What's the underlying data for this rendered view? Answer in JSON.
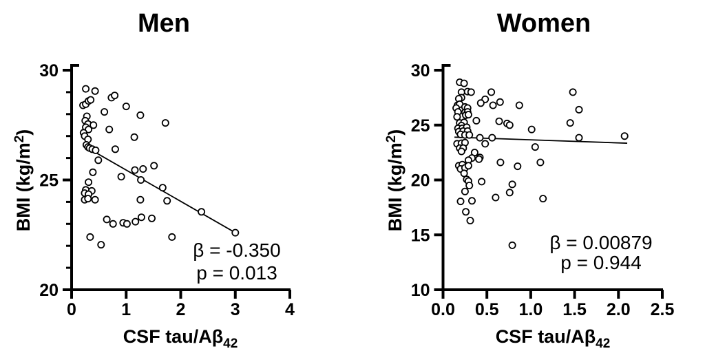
{
  "figure": {
    "background": "#ffffff",
    "ink_color": "#000000",
    "marker_style": "open-circle"
  },
  "chart_data": [
    {
      "id": "men",
      "type": "scatter",
      "title": "Men",
      "xlabel": {
        "main": "CSF tau/Aβ",
        "subscript": "42"
      },
      "ylabel": {
        "main": "BMI (kg/m",
        "superscript": "2",
        "suffix": ")"
      },
      "xlim": [
        0,
        4
      ],
      "ylim": [
        20,
        30
      ],
      "xticks": {
        "values": [
          0,
          1,
          2,
          3,
          4
        ],
        "labels": [
          "0",
          "1",
          "2",
          "3",
          "4"
        ]
      },
      "yticks": {
        "values": [
          30,
          25,
          20
        ],
        "labels": [
          "30",
          "25",
          "20"
        ]
      },
      "y_minor_tick_step": 1,
      "grid": false,
      "legend": null,
      "trend_line": {
        "x_start": 0.23,
        "y_start": 26.55,
        "x_end": 3.0,
        "y_end": 22.6
      },
      "annotation": {
        "lines": [
          "β = -0.350",
          "p = 0.013"
        ]
      },
      "points": [
        [
          0.26,
          29.15
        ],
        [
          0.43,
          29.05
        ],
        [
          0.21,
          28.4
        ],
        [
          0.26,
          28.45
        ],
        [
          0.31,
          28.6
        ],
        [
          0.35,
          28.65
        ],
        [
          0.73,
          28.75
        ],
        [
          0.79,
          28.85
        ],
        [
          1.0,
          28.35
        ],
        [
          0.6,
          28.1
        ],
        [
          1.26,
          27.95
        ],
        [
          1.72,
          27.6
        ],
        [
          0.28,
          27.9
        ],
        [
          0.25,
          27.7
        ],
        [
          0.3,
          27.55
        ],
        [
          0.26,
          27.4
        ],
        [
          0.31,
          27.3
        ],
        [
          0.22,
          27.15
        ],
        [
          0.24,
          27.0
        ],
        [
          0.4,
          27.5
        ],
        [
          0.69,
          27.3
        ],
        [
          1.15,
          26.95
        ],
        [
          0.3,
          26.85
        ],
        [
          0.27,
          26.6
        ],
        [
          0.3,
          26.5
        ],
        [
          0.33,
          26.45
        ],
        [
          0.38,
          26.4
        ],
        [
          0.44,
          26.35
        ],
        [
          0.8,
          26.4
        ],
        [
          0.49,
          25.9
        ],
        [
          0.39,
          25.35
        ],
        [
          0.91,
          25.15
        ],
        [
          1.16,
          25.45
        ],
        [
          1.31,
          25.5
        ],
        [
          1.51,
          25.65
        ],
        [
          1.27,
          25.0
        ],
        [
          0.31,
          24.9
        ],
        [
          1.67,
          24.65
        ],
        [
          0.26,
          24.55
        ],
        [
          0.37,
          24.5
        ],
        [
          0.24,
          24.4
        ],
        [
          0.31,
          24.35
        ],
        [
          0.24,
          24.1
        ],
        [
          0.3,
          24.15
        ],
        [
          0.43,
          24.1
        ],
        [
          1.26,
          24.1
        ],
        [
          1.75,
          24.05
        ],
        [
          2.38,
          23.55
        ],
        [
          0.645,
          23.2
        ],
        [
          0.76,
          23.0
        ],
        [
          0.945,
          23.05
        ],
        [
          1.015,
          23.0
        ],
        [
          1.17,
          23.1
        ],
        [
          1.28,
          23.3
        ],
        [
          1.47,
          23.25
        ],
        [
          0.34,
          22.4
        ],
        [
          1.84,
          22.4
        ],
        [
          0.54,
          22.05
        ],
        [
          3.0,
          22.6
        ]
      ]
    },
    {
      "id": "women",
      "type": "scatter",
      "title": "Women",
      "xlabel": {
        "main": "CSF tau/Aβ",
        "subscript": "42"
      },
      "ylabel": {
        "main": "BMI (kg/m",
        "superscript": "2",
        "suffix": ")"
      },
      "xlim": [
        0,
        2.5
      ],
      "ylim": [
        10,
        30
      ],
      "xticks": {
        "values": [
          0,
          0.5,
          1.0,
          1.5,
          2.0,
          2.5
        ],
        "labels": [
          "0.0",
          "0.5",
          "1.0",
          "1.5",
          "2.0",
          "2.5"
        ]
      },
      "yticks": {
        "values": [
          30,
          25,
          20,
          15,
          10
        ],
        "labels": [
          "30",
          "25",
          "20",
          "15",
          "10"
        ]
      },
      "y_minor_tick_step": null,
      "grid": false,
      "legend": null,
      "trend_line": {
        "x_start": 0.13,
        "y_start": 23.9,
        "x_end": 2.1,
        "y_end": 23.35
      },
      "annotation": {
        "lines": [
          "β = 0.00879",
          "p = 0.944"
        ]
      },
      "points": [
        [
          0.19,
          28.9
        ],
        [
          0.24,
          28.8
        ],
        [
          0.21,
          28.0
        ],
        [
          0.28,
          28.05
        ],
        [
          0.32,
          28.0
        ],
        [
          0.55,
          28.0
        ],
        [
          1.48,
          28.0
        ],
        [
          0.21,
          27.5
        ],
        [
          0.18,
          27.4
        ],
        [
          0.48,
          27.35
        ],
        [
          0.43,
          27.0
        ],
        [
          0.65,
          27.1
        ],
        [
          0.57,
          26.8
        ],
        [
          0.87,
          26.8
        ],
        [
          0.165,
          26.8
        ],
        [
          0.19,
          26.9
        ],
        [
          0.15,
          26.55
        ],
        [
          0.25,
          26.65
        ],
        [
          0.28,
          26.55
        ],
        [
          0.17,
          26.2
        ],
        [
          0.25,
          26.15
        ],
        [
          0.28,
          26.2
        ],
        [
          1.55,
          26.4
        ],
        [
          0.16,
          25.75
        ],
        [
          0.26,
          25.9
        ],
        [
          0.29,
          25.95
        ],
        [
          0.38,
          25.4
        ],
        [
          0.64,
          25.35
        ],
        [
          0.73,
          25.15
        ],
        [
          0.76,
          25.0
        ],
        [
          1.45,
          25.2
        ],
        [
          1.01,
          24.6
        ],
        [
          0.19,
          25.2
        ],
        [
          0.24,
          25.25
        ],
        [
          0.21,
          24.95
        ],
        [
          0.17,
          24.7
        ],
        [
          0.22,
          24.7
        ],
        [
          0.27,
          24.8
        ],
        [
          0.18,
          24.4
        ],
        [
          0.23,
          24.45
        ],
        [
          0.28,
          24.45
        ],
        [
          0.2,
          24.15
        ],
        [
          0.25,
          24.1
        ],
        [
          0.3,
          24.1
        ],
        [
          0.42,
          23.85
        ],
        [
          0.56,
          23.85
        ],
        [
          2.07,
          24.0
        ],
        [
          1.55,
          23.85
        ],
        [
          0.48,
          23.3
        ],
        [
          0.16,
          23.3
        ],
        [
          0.21,
          23.35
        ],
        [
          0.25,
          23.4
        ],
        [
          0.19,
          22.9
        ],
        [
          0.23,
          22.9
        ],
        [
          0.21,
          22.6
        ],
        [
          0.36,
          22.5
        ],
        [
          0.33,
          22.0
        ],
        [
          0.42,
          22.05
        ],
        [
          1.05,
          23.0
        ],
        [
          0.29,
          21.8
        ],
        [
          0.41,
          21.9
        ],
        [
          0.655,
          21.6
        ],
        [
          0.85,
          21.25
        ],
        [
          1.11,
          21.6
        ],
        [
          0.18,
          21.3
        ],
        [
          0.22,
          21.4
        ],
        [
          0.2,
          21.0
        ],
        [
          0.25,
          21.1
        ],
        [
          0.29,
          21.3
        ],
        [
          0.24,
          20.6
        ],
        [
          0.27,
          20.05
        ],
        [
          0.29,
          19.9
        ],
        [
          0.3,
          19.5
        ],
        [
          0.44,
          19.85
        ],
        [
          0.79,
          19.6
        ],
        [
          0.25,
          18.95
        ],
        [
          0.76,
          18.85
        ],
        [
          0.6,
          18.4
        ],
        [
          1.14,
          18.3
        ],
        [
          0.2,
          18.05
        ],
        [
          0.33,
          18.1
        ],
        [
          0.26,
          17.1
        ],
        [
          0.31,
          16.3
        ],
        [
          0.79,
          14.05
        ]
      ]
    }
  ]
}
